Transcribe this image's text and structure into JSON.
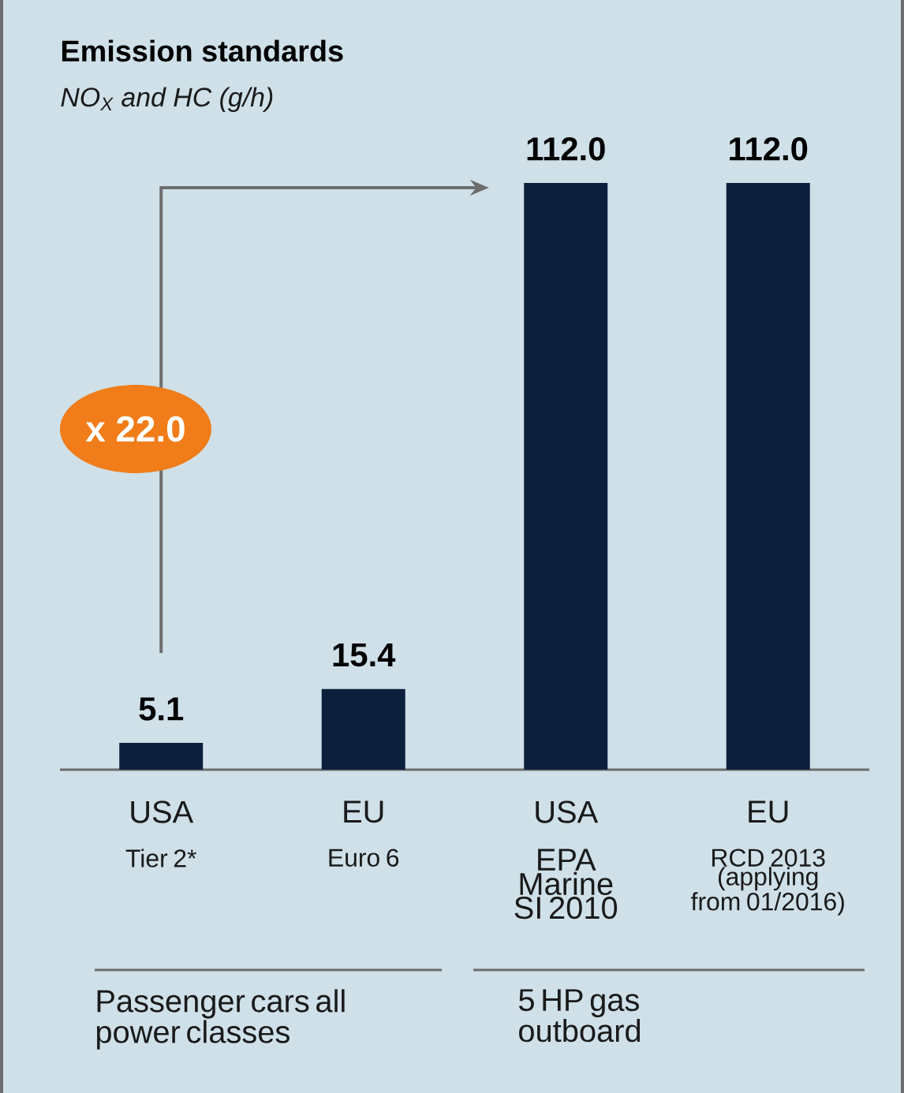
{
  "chart_data": {
    "type": "bar",
    "title": "Emission standards",
    "subtitle": "NO$_{X}$ and HC (g/h)",
    "categories": [
      "USA",
      "EU",
      "USA",
      "EU"
    ],
    "values": [
      5.1,
      15.4,
      112.0,
      112.0
    ],
    "value_labels": [
      "5.1",
      "15.4",
      "112.0",
      "112.0"
    ],
    "color": "#0c1f3d",
    "ylim": [
      0,
      112
    ],
    "annotations": [
      "Tier 2*",
      "Euro 6",
      "EPA Marine SI 2010",
      "RCD 2013 (applying from 01/2016)",
      "Passenger cars all power classes",
      "5 HP gas outboard",
      "x 22.0"
    ]
  }
}
